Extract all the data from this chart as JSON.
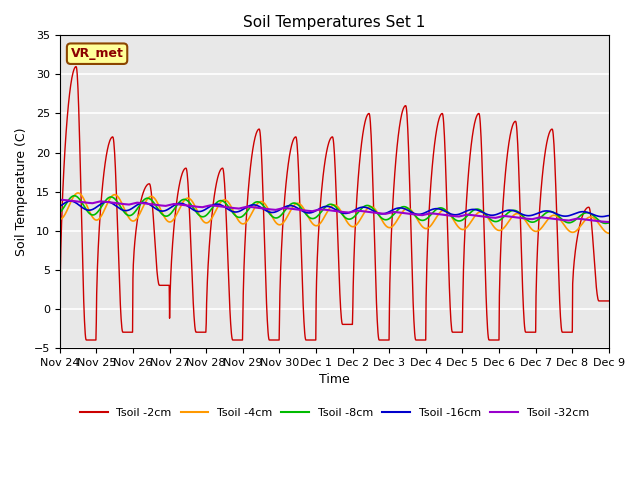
{
  "title": "Soil Temperatures Set 1",
  "xlabel": "Time",
  "ylabel": "Soil Temperature (C)",
  "ylim": [
    -5,
    35
  ],
  "yticks": [
    -5,
    0,
    5,
    10,
    15,
    20,
    25,
    30,
    35
  ],
  "xtick_labels": [
    "Nov 24",
    "Nov 25",
    "Nov 26",
    "Nov 27",
    "Nov 28",
    "Nov 29",
    "Nov 30",
    "Dec 1",
    "Dec 2",
    "Dec 3",
    "Dec 4",
    "Dec 5",
    "Dec 6",
    "Dec 7",
    "Dec 8",
    "Dec 9"
  ],
  "series_colors": [
    "#cc0000",
    "#ff9900",
    "#00bb00",
    "#0000cc",
    "#9900cc"
  ],
  "series_labels": [
    "Tsoil -2cm",
    "Tsoil -4cm",
    "Tsoil -8cm",
    "Tsoil -16cm",
    "Tsoil -32cm"
  ],
  "annotation_text": "VR_met",
  "background_color": "#e8e8e8",
  "n_points": 1440
}
